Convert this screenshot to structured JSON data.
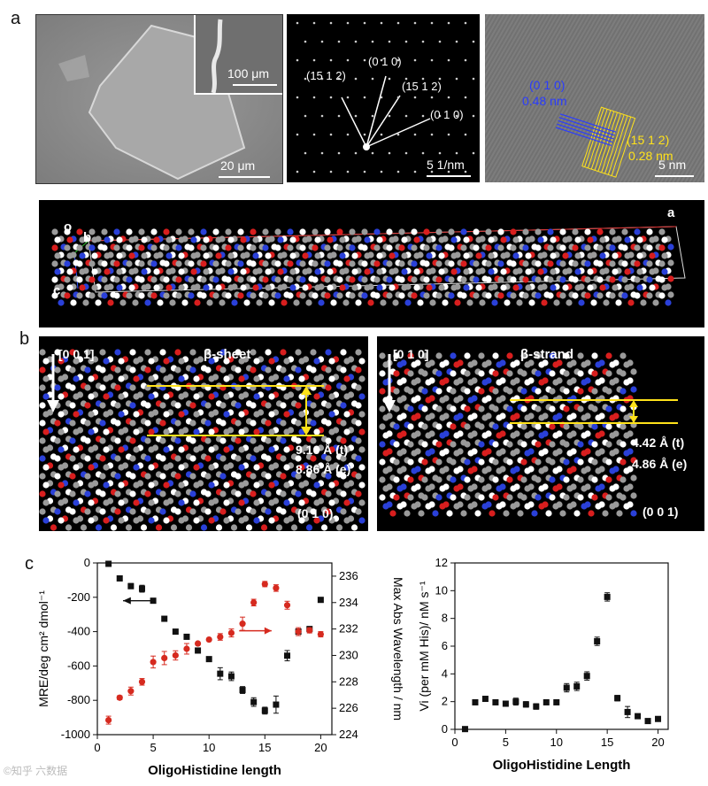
{
  "panels": {
    "a": {
      "letter": "a",
      "sem": {
        "scale_main": "20 μm",
        "scale_inset": "100 μm"
      },
      "saed": {
        "labels": [
          "(15 1 2)",
          "(0 1 0)",
          "(15 1 2)",
          "(0 1 0)"
        ],
        "scale": "5 1/nm"
      },
      "hrtem": {
        "blue_label_1": "(0 1 0)",
        "blue_label_2": "0.48 nm",
        "yellow_label_1": "(15 1 2)",
        "yellow_label_2": "0.28 nm",
        "scale": "5 nm",
        "colors": {
          "blue": "#2a3cff",
          "yellow": "#ffe21a"
        }
      },
      "crystal": {
        "axis_o": "o",
        "axis_b": "b",
        "axis_c": "c",
        "axis_a": "a"
      }
    },
    "b": {
      "letter": "b",
      "left": {
        "direction": "[0 0 1]",
        "title": "β-sheet",
        "d1": "9.16 Å (t)",
        "d2": "8.86 Å (e)",
        "plane": "(0 1 0)"
      },
      "right": {
        "direction": "[0 1 0]",
        "title": "β-strand",
        "d1": "4.42 Å (t)",
        "d2": "4.86 Å (e)",
        "plane": "(0 0 1)"
      }
    },
    "c": {
      "letter": "c"
    }
  },
  "chart_data": [
    {
      "type": "scatter",
      "xlabel": "OligoHistidine length",
      "ylabel": "MRE/deg cm² dmol⁻¹",
      "y2label": "Max Abs Wavelength / nm",
      "xlim": [
        0,
        21
      ],
      "ylim": [
        -1000,
        0
      ],
      "y2lim": [
        224,
        237
      ],
      "xticks": [
        "0",
        "5",
        "10",
        "15",
        "20"
      ],
      "yticks": [
        "-1000",
        "-800",
        "-600",
        "-400",
        "-200",
        "0"
      ],
      "y2ticks": [
        "224",
        "226",
        "228",
        "230",
        "232",
        "234",
        "236"
      ],
      "series": [
        {
          "axis": "left",
          "color": "#111111",
          "marker": "square",
          "x": [
            1,
            2,
            3,
            4,
            5,
            6,
            7,
            8,
            9,
            10,
            11,
            12,
            13,
            14,
            15,
            16,
            17,
            18,
            19,
            20
          ],
          "y": [
            -5,
            -90,
            -135,
            -150,
            -220,
            -325,
            -400,
            -430,
            -510,
            -560,
            -645,
            -660,
            -740,
            -810,
            -860,
            -825,
            -540,
            -400,
            -385,
            -215
          ],
          "err": [
            0,
            0,
            15,
            20,
            0,
            10,
            0,
            0,
            15,
            0,
            35,
            25,
            20,
            25,
            20,
            50,
            30,
            15,
            15,
            0
          ]
        },
        {
          "axis": "right",
          "color": "#d62a1f",
          "marker": "circle",
          "x": [
            1,
            2,
            3,
            4,
            5,
            6,
            7,
            8,
            9,
            10,
            11,
            12,
            13,
            14,
            15,
            16,
            17,
            18,
            19,
            20
          ],
          "y": [
            225.1,
            226.8,
            227.3,
            228.0,
            229.5,
            229.8,
            230.0,
            230.5,
            230.9,
            231.2,
            231.4,
            231.7,
            232.4,
            234.0,
            235.4,
            235.1,
            233.8,
            231.8,
            231.9,
            231.6
          ],
          "err": [
            0.3,
            0.15,
            0.3,
            0.25,
            0.45,
            0.5,
            0.35,
            0.4,
            0,
            0,
            0.25,
            0.3,
            0.5,
            0.25,
            0.2,
            0.25,
            0.3,
            0.3,
            0.2,
            0.2
          ]
        }
      ]
    },
    {
      "type": "scatter",
      "xlabel": "OligoHistidine Length",
      "ylabel": "Vi (per mM His)/ nM s⁻¹",
      "xlim": [
        0,
        21
      ],
      "ylim": [
        0,
        12
      ],
      "xticks": [
        "0",
        "5",
        "10",
        "15",
        "20"
      ],
      "yticks": [
        "0",
        "2",
        "4",
        "6",
        "8",
        "10",
        "12"
      ],
      "series": [
        {
          "color": "#111111",
          "marker": "square",
          "x": [
            1,
            2,
            3,
            4,
            5,
            6,
            7,
            8,
            9,
            10,
            11,
            12,
            13,
            14,
            15,
            16,
            17,
            18,
            19,
            20
          ],
          "y": [
            0.02,
            1.95,
            2.2,
            1.95,
            1.85,
            2.0,
            1.8,
            1.65,
            1.95,
            1.95,
            3.0,
            3.1,
            3.85,
            6.35,
            9.55,
            2.25,
            1.25,
            0.95,
            0.6,
            0.75
          ],
          "err": [
            0,
            0,
            0.1,
            0,
            0.1,
            0.25,
            0.2,
            0.2,
            0.1,
            0.1,
            0.3,
            0.3,
            0.3,
            0.3,
            0.3,
            0.2,
            0.4,
            0.1,
            0.1,
            0.1
          ]
        }
      ]
    }
  ],
  "watermark": "©知乎 六数据"
}
